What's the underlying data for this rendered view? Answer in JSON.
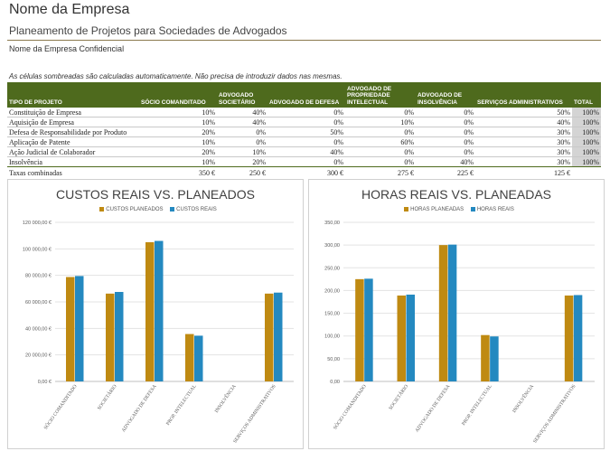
{
  "header": {
    "company": "Nome da Empresa",
    "subtitle": "Planeamento de Projetos para Sociedades de Advogados",
    "confidential": "Nome da Empresa Confidencial",
    "note": "As células sombreadas são calculadas automaticamente. Não precisa de introduzir dados nas mesmas."
  },
  "table": {
    "headers": [
      "TIPO DE PROJETO",
      "SÓCIO COMANDITADO",
      "ADVOGADO SOCIETÁRIO",
      "ADVOGADO DE DEFESA",
      "ADVOGADO DE PROPRIEDADE INTELECTUAL",
      "ADVOGADO DE INSOLVÊNCIA",
      "SERVIÇOS ADMINISTRATIVOS",
      "TOTAL"
    ],
    "rows": [
      [
        "Constituição de Empresa",
        "10%",
        "40%",
        "0%",
        "0%",
        "0%",
        "50%",
        "100%"
      ],
      [
        "Aquisição de Empresa",
        "10%",
        "40%",
        "0%",
        "10%",
        "0%",
        "40%",
        "100%"
      ],
      [
        "Defesa de Responsabilidade por Produto",
        "20%",
        "0%",
        "50%",
        "0%",
        "0%",
        "30%",
        "100%"
      ],
      [
        "Aplicação de Patente",
        "10%",
        "0%",
        "0%",
        "60%",
        "0%",
        "30%",
        "100%"
      ],
      [
        "Ação Judicial de Colaborador",
        "20%",
        "10%",
        "40%",
        "0%",
        "0%",
        "30%",
        "100%"
      ],
      [
        "Insolvência",
        "10%",
        "20%",
        "0%",
        "0%",
        "40%",
        "30%",
        "100%"
      ]
    ],
    "rates_label": "Taxas combinadas",
    "rates": [
      "350 €",
      "250 €",
      "300 €",
      "275 €",
      "225 €",
      "125 €"
    ]
  },
  "colors": {
    "header_bg": "#4e6a1d",
    "planned": "#bf8a12",
    "real": "#2489c0",
    "shaded": "#d4d4d4"
  },
  "chart_data": [
    {
      "type": "bar",
      "title": "CUSTOS REAIS VS. PLANEADOS",
      "categories": [
        "SÓCIO COMANDITADO",
        "SOCIETÁRIO",
        "ADVOGADO DE DEFESA",
        "PROP. INTELECTUAL",
        "INSOLVÊNCIA",
        "SERVIÇOS ADMINISTRATIVOS"
      ],
      "series": [
        {
          "name": "CUSTOS PLANEADOS",
          "values": [
            78750,
            66250,
            105000,
            35750,
            0,
            66250
          ]
        },
        {
          "name": "CUSTOS REAIS",
          "values": [
            79500,
            67500,
            106000,
            34500,
            0,
            67000
          ]
        }
      ],
      "ylim": [
        0,
        120000
      ],
      "yticks": [
        "0,00 €",
        "20 000,00 €",
        "40 000,00 €",
        "60 000,00 €",
        "80 000,00 €",
        "100 000,00 €",
        "120 000,00 €"
      ],
      "grid": true,
      "legend": "top"
    },
    {
      "type": "bar",
      "title": "HORAS REAIS VS. PLANEADAS",
      "categories": [
        "SÓCIO COMANDITADO",
        "SOCIETÁRIO",
        "ADVOGADO DE DEFESA",
        "PROP. INTELECTUAL",
        "INSOLVÊNCIA",
        "SERVIÇOS ADMINISTRATIVOS"
      ],
      "series": [
        {
          "name": "HORAS PLANEADAS",
          "values": [
            225,
            189,
            300,
            102,
            0,
            189
          ]
        },
        {
          "name": "HORAS REAIS",
          "values": [
            226,
            191,
            301,
            99,
            0,
            190
          ]
        }
      ],
      "ylim": [
        0,
        350
      ],
      "yticks": [
        "0,00",
        "50,00",
        "100,00",
        "150,00",
        "200,00",
        "250,00",
        "300,00",
        "350,00"
      ],
      "grid": true,
      "legend": "top"
    }
  ]
}
